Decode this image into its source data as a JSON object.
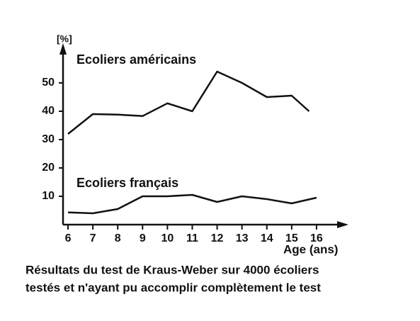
{
  "chart_data": {
    "type": "line",
    "y_label": "[%]",
    "x_label": "Age (ans)",
    "caption": [
      "Résultats du test de Kraus-Weber sur 4000 écoliers",
      "testés et n'ayant pu accomplir complètement le test"
    ],
    "series": [
      {
        "name": "Ecoliers américains",
        "color": "#111111",
        "x": [
          6,
          7,
          8,
          9,
          10,
          11,
          12,
          13,
          14,
          15,
          15.7
        ],
        "values": [
          32,
          39,
          38.8,
          38.3,
          42.8,
          40,
          54,
          50,
          45,
          45.5,
          40
        ]
      },
      {
        "name": "Ecoliers français",
        "color": "#111111",
        "x": [
          6,
          7,
          8,
          9,
          10,
          11,
          12,
          13,
          14,
          15,
          16
        ],
        "values": [
          4.3,
          4,
          5.5,
          10,
          10,
          10.5,
          8,
          10,
          9,
          7.5,
          9.5
        ]
      }
    ],
    "xlim": [
      5.8,
      17
    ],
    "ylim": [
      0,
      62
    ],
    "xticks": [
      6,
      7,
      8,
      9,
      10,
      11,
      12,
      13,
      14,
      15,
      16
    ],
    "yticks": [
      10,
      20,
      30,
      40,
      50
    ],
    "grid": false
  }
}
